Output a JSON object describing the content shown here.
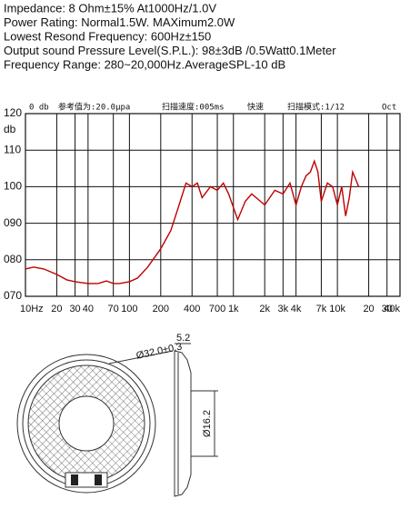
{
  "specs": [
    "Impedance: 8 Ohm±15%  At1000Hz/1.0V",
    "Power Rating: Normal1.5W.  MAXimum2.0W",
    "Lowest Resond Frequency: 600Hz±150",
    "Output sound Pressure Level(S.P.L.): 98±3dB /0.5Watt0.1Meter",
    "Frequency Range: 280~20,000Hz.AverageSPL-10 dB"
  ],
  "chart_data": {
    "type": "line",
    "xscale": "log",
    "ylabel": "db",
    "annotations": [
      "0 db",
      "参考值为:20.0μpa",
      "扫描速度:005ms",
      "快速",
      "扫描模式:1/12",
      "Oct"
    ],
    "series": [
      {
        "color": "#c00000",
        "x": [
          10,
          12,
          15,
          20,
          25,
          30,
          40,
          50,
          60,
          70,
          80,
          100,
          120,
          150,
          200,
          250,
          300,
          350,
          400,
          450,
          500,
          600,
          700,
          800,
          900,
          1100,
          1300,
          1500,
          2000,
          2500,
          3000,
          3500,
          4000,
          4500,
          5000,
          5500,
          6000,
          6500,
          7000,
          8000,
          9000,
          10000,
          11000,
          12000,
          13000,
          14000,
          15000,
          16000
        ],
        "values": [
          77.5,
          78,
          77.5,
          76,
          74.5,
          74,
          73.5,
          73.5,
          74.2,
          73.5,
          73.5,
          74,
          75,
          78,
          83,
          88,
          95,
          101,
          100,
          101,
          97,
          100,
          99,
          101,
          98,
          91,
          96,
          98,
          95,
          99,
          98,
          101,
          95,
          100,
          103,
          104,
          107,
          104,
          96,
          101,
          100,
          95,
          100,
          92,
          97,
          104,
          102,
          100
        ]
      }
    ],
    "xlim": [
      10,
      40000
    ],
    "xticks": [
      {
        "value": 10,
        "label": "10Hz"
      },
      20,
      30,
      40,
      70,
      100,
      200,
      400,
      700,
      {
        "value": 1000,
        "label": "1k"
      },
      {
        "value": 2000,
        "label": "2k"
      },
      {
        "value": 3000,
        "label": "3k"
      },
      {
        "value": 4000,
        "label": "4k"
      },
      {
        "value": 7000,
        "label": "7k"
      },
      {
        "value": 10000,
        "label": "10k"
      },
      {
        "value": 20000,
        "label": "20"
      },
      {
        "value": 30000,
        "label": "30"
      },
      {
        "value": 40000,
        "label": "40k"
      }
    ],
    "ylim": [
      70,
      120
    ],
    "yticks": [
      {
        "value": 70,
        "label": "070"
      },
      {
        "value": 80,
        "label": "080"
      },
      {
        "value": 90,
        "label": "090"
      },
      100,
      110,
      120
    ],
    "grid": true
  },
  "drawing": {
    "labels": [
      "Ø32.0±0.3",
      "5.2",
      "Ø16.2"
    ]
  }
}
